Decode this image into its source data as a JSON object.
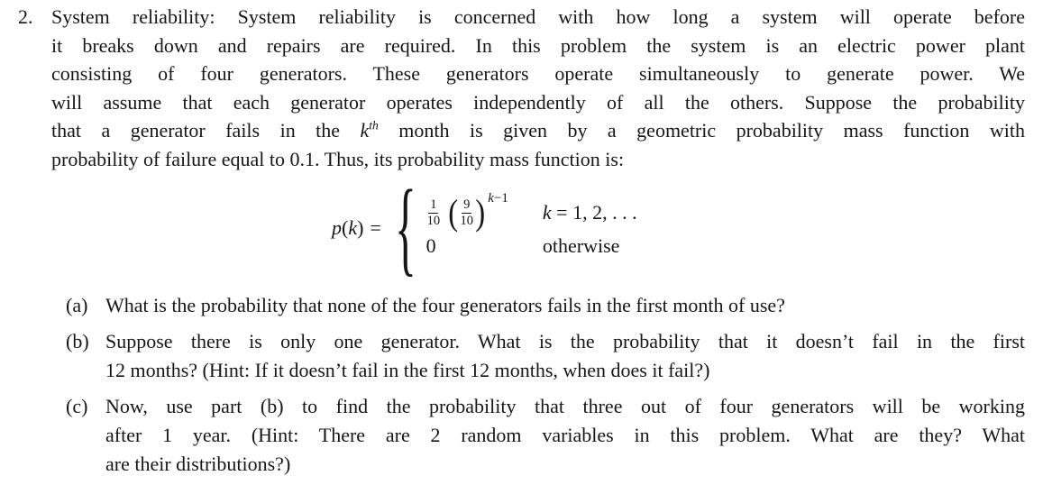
{
  "page": {
    "background": "#ffffff",
    "text_color": "#161616"
  },
  "problem": {
    "number": "2.",
    "intro": {
      "line1": "System reliability: System reliability is concerned with how long a system will operate before",
      "line2": "it breaks down and repairs are required. In this problem the system is an electric power plant",
      "line3": "consisting of four generators. These generators operate simultaneously to generate power. We",
      "line4": "will assume that each generator operates independently of all the others. Suppose the probability",
      "line5_pre": "that a generator fails in the ",
      "line5_var": "k",
      "line5_sup": "th",
      "line5_post": " month is given by a geometric probability mass function with",
      "line6": "probability of failure equal to 0.1. Thus, its probability mass function is:"
    },
    "formula": {
      "lhs_var": "p",
      "lhs_open": "(",
      "lhs_arg": "k",
      "lhs_close": ")",
      "equals": "=",
      "brace": "{",
      "case1": {
        "frac1_num": "1",
        "frac1_den": "10",
        "open_paren": "(",
        "frac2_num": "9",
        "frac2_den": "10",
        "close_paren": ")",
        "exp_var": "k",
        "exp_rest": "−1",
        "cond_var": "k",
        "cond_rest": " = 1, 2, . . ."
      },
      "case2": {
        "value": "0",
        "condition": "otherwise"
      }
    },
    "part_a": {
      "label": "(a)",
      "line1": "What is the probability that none of the four generators fails in the first month of use?"
    },
    "part_b": {
      "label": "(b)",
      "line1": "Suppose there is only one generator. What is the probability that it doesn’t fail in the first",
      "line2": "12 months? (Hint: If it doesn’t fail in the first 12 months, when does it fail?)"
    },
    "part_c": {
      "label": "(c)",
      "line1": "Now, use part (b) to find the probability that three out of four generators will be working",
      "line2": "after 1 year. (Hint: There are 2 random variables in this problem. What are they? What",
      "line3": "are their distributions?)"
    }
  }
}
